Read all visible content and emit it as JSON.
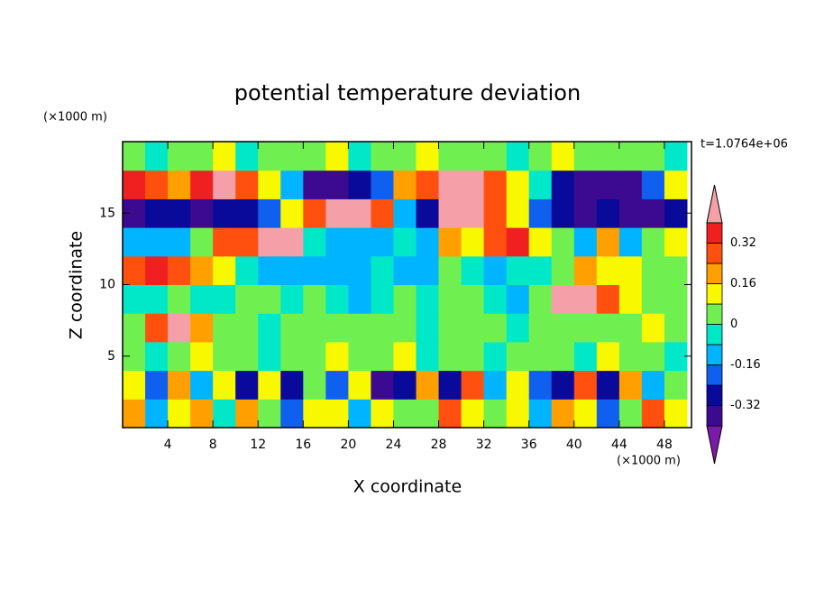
{
  "chart_data": {
    "type": "contour",
    "title": "potential temperature deviation",
    "xlabel": "X coordinate",
    "ylabel": "Z coordinate",
    "xunit": "(×1000 m)",
    "yunit": "(×1000 m)",
    "annotation": "t=1.0764e+06",
    "xlim": [
      0,
      50.4
    ],
    "ylim": [
      0,
      20
    ],
    "xticks": [
      4,
      8,
      12,
      16,
      20,
      24,
      28,
      32,
      36,
      40,
      44,
      48
    ],
    "yticks": [
      5,
      10,
      15
    ],
    "x": [
      1,
      3,
      5,
      7,
      9,
      11,
      13,
      15,
      17,
      19,
      21,
      23,
      25,
      27,
      29,
      31,
      33,
      35,
      37,
      39,
      41,
      43,
      45,
      47,
      49
    ],
    "y": [
      1,
      3,
      5,
      7,
      9,
      11,
      13,
      15,
      17,
      19
    ],
    "z": [
      [
        0.2,
        -0.1,
        0.1,
        0.2,
        -0.05,
        0.2,
        0.05,
        -0.2,
        0.1,
        0.15,
        -0.1,
        0.1,
        0.05,
        0.02,
        0.3,
        0.1,
        0.05,
        0.15,
        -0.1,
        0.2,
        0.1,
        -0.2,
        0.05,
        0.3,
        0.1
      ],
      [
        0.1,
        -0.2,
        0.2,
        -0.1,
        0.15,
        -0.25,
        0.1,
        -0.3,
        0.05,
        -0.2,
        0.1,
        -0.35,
        -0.3,
        0.2,
        -0.3,
        0.3,
        -0.1,
        0.1,
        -0.2,
        -0.3,
        0.3,
        -0.25,
        0.2,
        -0.1,
        0.05
      ],
      [
        0.02,
        -0.05,
        0.03,
        0.1,
        0,
        0.05,
        -0.02,
        0.03,
        0.05,
        0.1,
        0.02,
        0.05,
        0.1,
        -0.02,
        0.03,
        0.05,
        -0.03,
        0.02,
        0.05,
        0.02,
        -0.05,
        0.1,
        0.03,
        0.05,
        -0.02
      ],
      [
        0.05,
        0.3,
        0.45,
        0.2,
        0.05,
        0.02,
        -0.03,
        0.02,
        0.05,
        0.03,
        0.05,
        0.02,
        0.03,
        -0.02,
        0.02,
        0.03,
        0.05,
        -0.03,
        0.02,
        0.05,
        0.03,
        0.02,
        0.05,
        0.08,
        0.03
      ],
      [
        -0.05,
        -0.03,
        0.02,
        -0.05,
        -0.03,
        0.03,
        0.05,
        -0.02,
        0.02,
        -0.05,
        -0.1,
        -0.05,
        0.02,
        -0.03,
        0.05,
        0.03,
        -0.05,
        -0.1,
        0.05,
        0.4,
        0.45,
        0.3,
        0.1,
        0.03,
        0.02
      ],
      [
        0.3,
        0.35,
        0.3,
        0.2,
        0.1,
        -0.05,
        -0.1,
        -0.1,
        -0.1,
        -0.12,
        -0.1,
        -0.05,
        -0.1,
        -0.1,
        0.02,
        -0.05,
        -0.1,
        -0.05,
        -0.05,
        0.05,
        0.2,
        0.15,
        0.1,
        0.03,
        0.02
      ],
      [
        -0.1,
        -0.15,
        -0.1,
        0.05,
        0.25,
        0.3,
        0.4,
        0.45,
        -0.05,
        -0.1,
        -0.12,
        -0.1,
        -0.08,
        -0.15,
        0.2,
        0.1,
        0.3,
        0.35,
        0.15,
        0.05,
        -0.1,
        0.2,
        -0.1,
        0.05,
        0.1
      ],
      [
        -0.35,
        -0.3,
        -0.25,
        -0.4,
        -0.3,
        -0.3,
        -0.2,
        0.15,
        0.3,
        0.45,
        0.45,
        0.3,
        -0.1,
        -0.3,
        0.4,
        0.45,
        0.3,
        0.1,
        -0.2,
        -0.3,
        -0.35,
        -0.3,
        -0.4,
        -0.35,
        -0.3
      ],
      [
        0.35,
        0.3,
        0.2,
        0.35,
        0.45,
        0.3,
        0.1,
        -0.1,
        -0.35,
        -0.4,
        -0.3,
        -0.2,
        0.2,
        0.3,
        0.45,
        0.45,
        0.3,
        0.1,
        -0.05,
        -0.3,
        -0.35,
        -0.4,
        -0.35,
        -0.2,
        0.1
      ],
      [
        0.02,
        -0.03,
        0.02,
        0.05,
        0.08,
        -0.05,
        0.02,
        0.03,
        0.05,
        0.1,
        -0.05,
        0.02,
        0.05,
        0.1,
        0.05,
        0.02,
        0.03,
        -0.05,
        0.02,
        0.1,
        0.05,
        0.02,
        0.03,
        0.05,
        -0.03
      ]
    ],
    "levels": [
      -0.4,
      -0.32,
      -0.24,
      -0.16,
      -0.08,
      0,
      0.08,
      0.16,
      0.24,
      0.32,
      0.4
    ],
    "colors": [
      "#7a1aa8",
      "#3c0a90",
      "#0a0a9a",
      "#1060f0",
      "#00b4ff",
      "#00e8c8",
      "#70f050",
      "#f8f800",
      "#ffa000",
      "#ff5010",
      "#f02020",
      "#f5a0a8"
    ],
    "colorbar_ticks": [
      -0.32,
      -0.16,
      0,
      0.16,
      0.32
    ]
  }
}
